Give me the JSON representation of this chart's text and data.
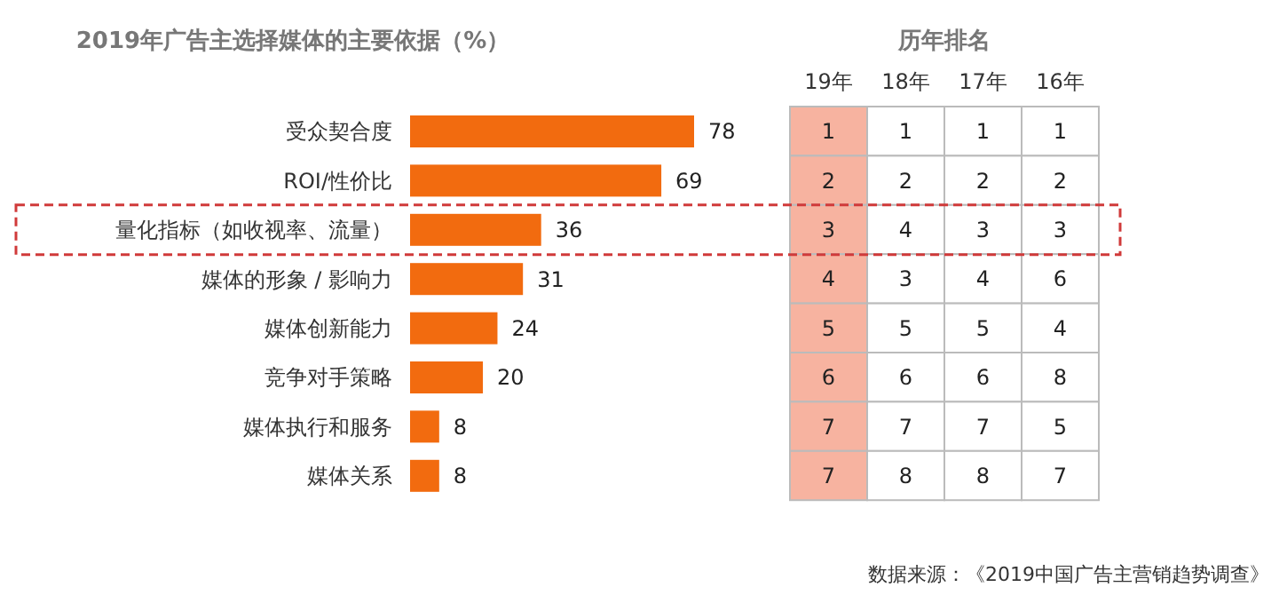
{
  "chart_data": [
    {
      "type": "bar",
      "orientation": "horizontal",
      "title": "2019年广告主选择媒体的主要依据（%）",
      "categories": [
        "受众契合度",
        "ROI/性价比",
        "量化指标（如收视率、流量）",
        "媒体的形象 / 影响力",
        "媒体创新能力",
        "竞争对手策略",
        "媒体执行和服务",
        "媒体关系"
      ],
      "values": [
        78,
        69,
        36,
        31,
        24,
        20,
        8,
        8
      ],
      "color": "#f26b0f",
      "data_labels": true,
      "annotations": [
        "数据来源：《2019中国广告主营销趋势调查》"
      ]
    },
    {
      "type": "heatmap",
      "title": "历年排名",
      "categories": [
        "19年",
        "18年",
        "17年",
        "16年"
      ],
      "y_categories": [
        null,
        null,
        null,
        null,
        null,
        null,
        null,
        null
      ],
      "cells": [
        [
          1,
          1,
          1,
          1
        ],
        [
          2,
          2,
          2,
          2
        ],
        [
          3,
          4,
          3,
          3
        ],
        [
          4,
          3,
          4,
          6
        ],
        [
          5,
          5,
          5,
          4
        ],
        [
          6,
          6,
          6,
          8
        ],
        [
          7,
          7,
          7,
          5
        ],
        [
          7,
          8,
          8,
          7
        ]
      ],
      "colors": [
        "#f7b3a0",
        "#ffffff",
        "#ffffff",
        "#ffffff"
      ],
      "data_labels": true
    }
  ]
}
